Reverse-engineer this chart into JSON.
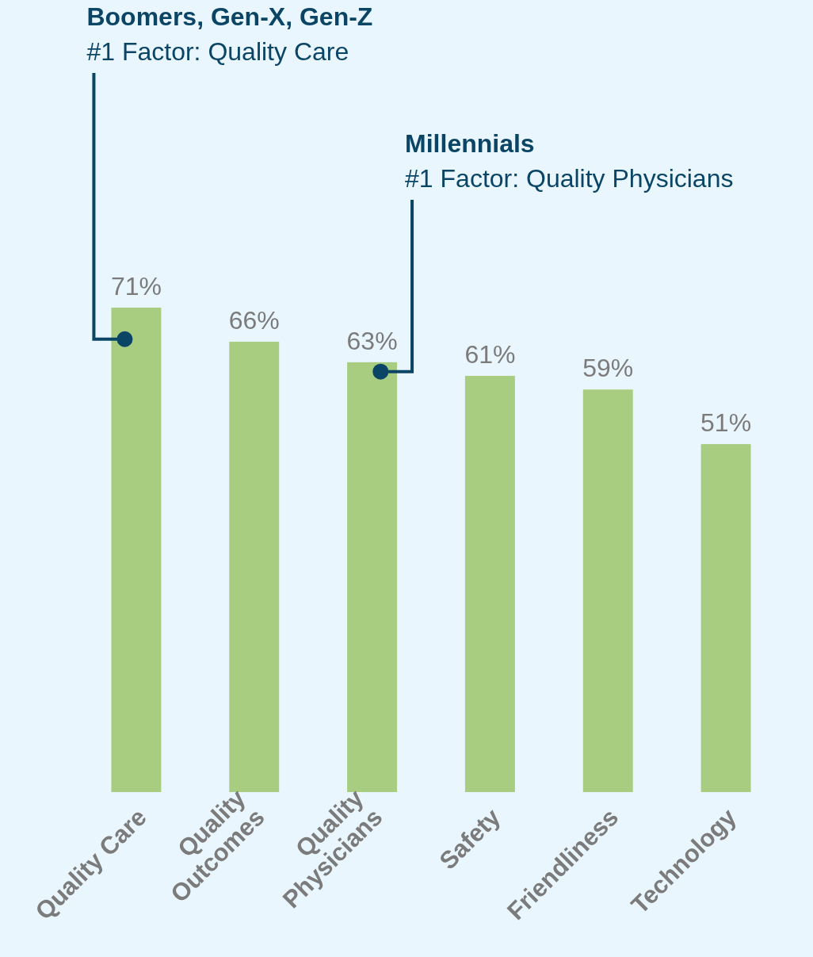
{
  "chart_data": {
    "type": "bar",
    "categories": [
      "Quality Care",
      "Quality\nOutcomes",
      "Quality\nPhysicians",
      "Safety",
      "Friendliness",
      "Technology"
    ],
    "values": [
      71,
      66,
      63,
      61,
      59,
      51
    ],
    "color": "#a8cd80",
    "data_labels": true,
    "value_labels": [
      "71%",
      "66%",
      "63%",
      "61%",
      "59%",
      "51%"
    ],
    "annotations": [
      "Boomers, Gen-X, Gen-Z\n#1 Factor: Quality Care",
      "Millennials\n#1 Factor: Quality Physicians"
    ]
  }
}
